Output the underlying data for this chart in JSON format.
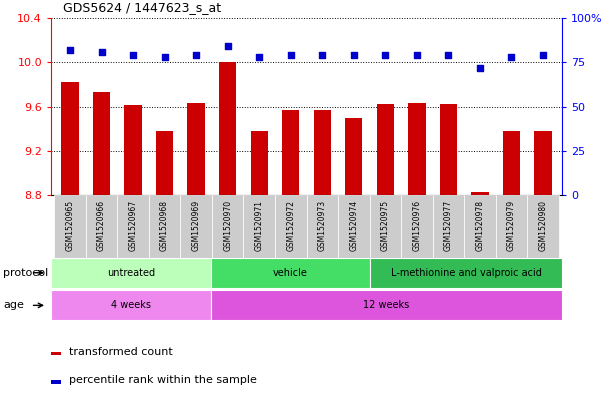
{
  "title": "GDS5624 / 1447623_s_at",
  "samples": [
    "GSM1520965",
    "GSM1520966",
    "GSM1520967",
    "GSM1520968",
    "GSM1520969",
    "GSM1520970",
    "GSM1520971",
    "GSM1520972",
    "GSM1520973",
    "GSM1520974",
    "GSM1520975",
    "GSM1520976",
    "GSM1520977",
    "GSM1520978",
    "GSM1520979",
    "GSM1520980"
  ],
  "transformed_count": [
    9.82,
    9.73,
    9.61,
    9.38,
    9.63,
    10.0,
    9.38,
    9.57,
    9.57,
    9.5,
    9.62,
    9.63,
    9.62,
    8.83,
    9.38,
    9.38
  ],
  "percentile_rank": [
    82,
    81,
    79,
    78,
    79,
    84,
    78,
    79,
    79,
    79,
    79,
    79,
    79,
    72,
    78,
    79
  ],
  "ylim_left": [
    8.8,
    10.4
  ],
  "ylim_right": [
    0,
    100
  ],
  "yticks_left": [
    8.8,
    9.2,
    9.6,
    10.0,
    10.4
  ],
  "yticks_right": [
    0,
    25,
    50,
    75,
    100
  ],
  "bar_color": "#cc0000",
  "dot_color": "#0000cc",
  "protocol_groups": [
    {
      "label": "untreated",
      "start": 0,
      "end": 5,
      "color": "#bbffbb"
    },
    {
      "label": "vehicle",
      "start": 5,
      "end": 10,
      "color": "#44dd66"
    },
    {
      "label": "L-methionine and valproic acid",
      "start": 10,
      "end": 16,
      "color": "#33bb55"
    }
  ],
  "age_groups": [
    {
      "label": "4 weeks",
      "start": 0,
      "end": 5,
      "color": "#ee88ee"
    },
    {
      "label": "12 weeks",
      "start": 5,
      "end": 16,
      "color": "#dd55dd"
    }
  ],
  "protocol_label": "protocol",
  "age_label": "age",
  "legend_bar_label": "transformed count",
  "legend_dot_label": "percentile rank within the sample",
  "xtick_bg_color": "#cccccc",
  "xtick_bg_color2": "#dddddd"
}
